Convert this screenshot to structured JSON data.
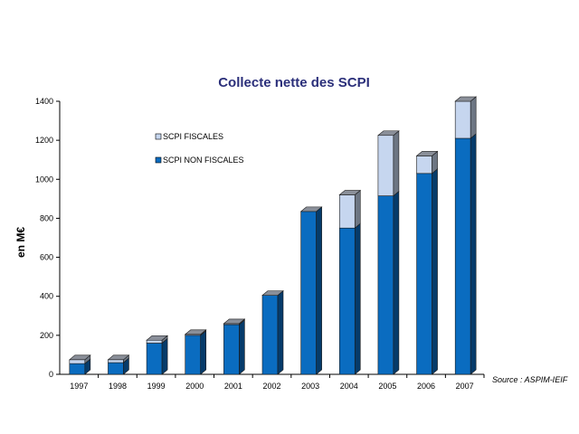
{
  "chart_data": {
    "type": "bar",
    "stacked": true,
    "three_d": true,
    "title": "Collecte nette des SCPI",
    "ylabel": "en M€",
    "xlabel": "",
    "categories": [
      "1997",
      "1998",
      "1999",
      "2000",
      "2001",
      "2002",
      "2003",
      "2004",
      "2005",
      "2006",
      "2007"
    ],
    "ylim": [
      0,
      1400
    ],
    "yticks": [
      0,
      200,
      400,
      600,
      800,
      1000,
      1200,
      1400
    ],
    "series": [
      {
        "name": "SCPI NON FISCALES",
        "color": "#0a6cc0",
        "values": [
          55,
          60,
          160,
          200,
          255,
          405,
          835,
          750,
          915,
          1030,
          1210
        ]
      },
      {
        "name": "SCPI FISCALES",
        "color": "#c6d6ef",
        "values": [
          20,
          15,
          15,
          5,
          5,
          0,
          0,
          170,
          310,
          90,
          190
        ]
      }
    ],
    "legend_position": "top-left",
    "source": "Source : ASPIM-IEIF"
  }
}
